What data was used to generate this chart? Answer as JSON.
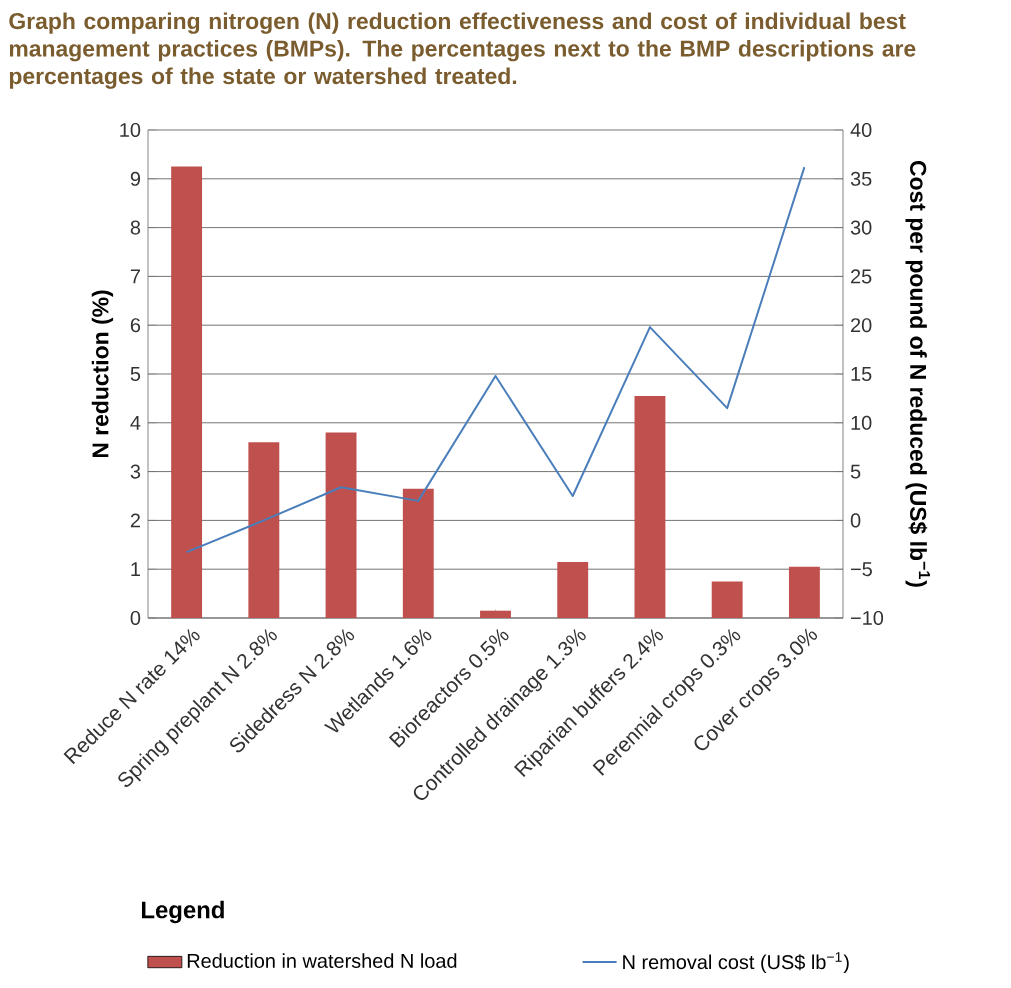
{
  "chart_data": {
    "type": "bar",
    "title": "Graph comparing nitrogen (N) reduction effectiveness and cost of individual best management practices (BMPs). The percentages next to the BMP descriptions are percentages of the state or watershed treated.",
    "categories": [
      "Reduce N rate 14%",
      "Spring preplant N 2.8%",
      "Sidedress N 2.8%",
      "Wetlands 1.6%",
      "Bioreactors 0.5%",
      "Controlled drainage 1.3%",
      "Riparian buffers 2.4%",
      "Perennial crops 0.3%",
      "Cover crops 3.0%"
    ],
    "ylabel": "N reduction (%)",
    "y2label": "Cost per pound of N reduced (US$ lb$^{−1}$)",
    "legend_title": "Legend",
    "series": [
      {
        "name": "Reduction in watershed N load",
        "color": "#c0504d",
        "values": [
          9.25,
          3.6,
          3.8,
          2.65,
          0.15,
          1.15,
          4.55,
          0.75,
          1.05
        ]
      },
      {
        "name": "N removal cost (US$ lb$^{−1}$)",
        "type": "line",
        "axis": "y2",
        "color": "#4a7ebb",
        "values": [
          -3.25,
          0,
          3.4,
          2,
          14.8,
          2.5,
          19.8,
          11.5,
          36.2
        ]
      }
    ],
    "ylim": [
      0,
      10
    ],
    "yticks": [
      0,
      1,
      2,
      3,
      4,
      5,
      6,
      7,
      8,
      9,
      10
    ],
    "y2lim": [
      -10,
      40
    ],
    "y2ticks": [
      {
        "value": -10,
        "label": "−10"
      },
      {
        "value": -5,
        "label": "−5"
      },
      0,
      5,
      10,
      15,
      20,
      25,
      30,
      35,
      40
    ],
    "grid": "y",
    "legend": "bottom",
    "marker": "none"
  }
}
